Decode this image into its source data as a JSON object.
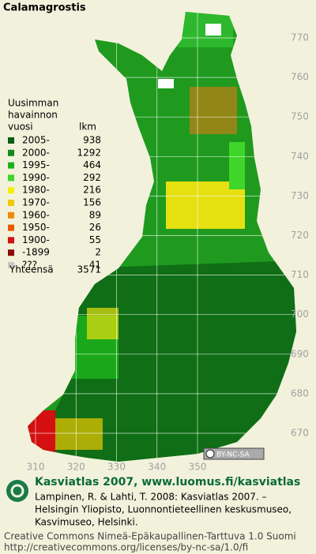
{
  "title": "Calamagrostis",
  "legend": {
    "heading": [
      "Uusimman",
      "havainnon",
      "vuosi"
    ],
    "count_heading": "lkm",
    "items": [
      {
        "label": "2005-",
        "count": 938,
        "color": "#0b5e14"
      },
      {
        "label": "2000-",
        "count": 1292,
        "color": "#138a1c"
      },
      {
        "label": "1995-",
        "count": 464,
        "color": "#1fb01f"
      },
      {
        "label": "1990-",
        "count": 292,
        "color": "#3fd62a"
      },
      {
        "label": "1980-",
        "count": 216,
        "color": "#f2f200"
      },
      {
        "label": "1970-",
        "count": 156,
        "color": "#f0c800"
      },
      {
        "label": "1960-",
        "count": 89,
        "color": "#f08a00"
      },
      {
        "label": "1950-",
        "count": 26,
        "color": "#e85a00"
      },
      {
        "label": "1900-",
        "count": 55,
        "color": "#d41010"
      },
      {
        "label": "-1899",
        "count": 2,
        "color": "#8c0a0a"
      },
      {
        "label": "???",
        "count": 41,
        "color": "#c8c8c8"
      }
    ],
    "total_label": "Yhteensä",
    "total": 3571
  },
  "grid": {
    "northing": [
      770,
      760,
      750,
      740,
      730,
      720,
      710,
      700,
      690,
      680,
      670
    ],
    "easting": [
      310,
      320,
      330,
      340,
      350
    ]
  },
  "license_badge": "BY-NC-SA",
  "footer": {
    "site": "Kasviatlas 2007, www.luomus.fi/kasviatlas",
    "citation": [
      "Lampinen, R. & Lahti, T. 2008: Kasviatlas 2007. –",
      "Helsingin Yliopisto, Luonnontieteellinen keskusmuseo,",
      "Kasvimuseo, Helsinki."
    ],
    "license": [
      "Creative Commons Nimeä-Epäkaupallinen-Tarttuva 1.0 Suomi",
      "http://creativecommons.org/licenses/by-nc-sa/1.0/fi"
    ]
  }
}
